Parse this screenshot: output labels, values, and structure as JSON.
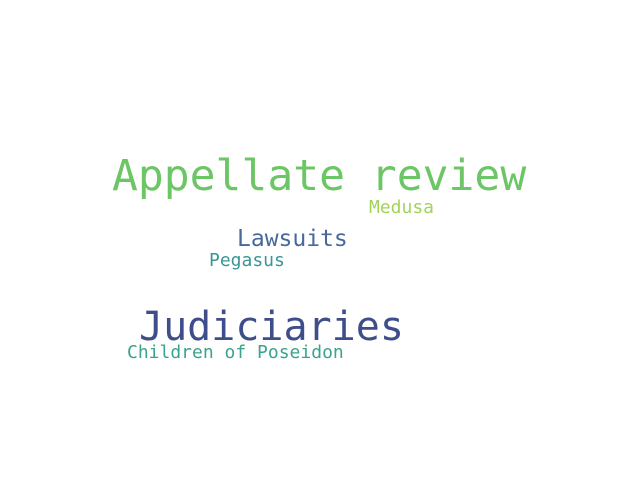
{
  "words": [
    {
      "text": "Appellate review",
      "color": "#6cc665"
    },
    {
      "text": "Medusa",
      "color": "#a3d35a"
    },
    {
      "text": "Lawsuits",
      "color": "#47699a"
    },
    {
      "text": "Pegasus",
      "color": "#3b9595"
    },
    {
      "text": "Judiciaries",
      "color": "#3e4e8a"
    },
    {
      "text": "Children of Poseidon",
      "color": "#3aa38c"
    }
  ]
}
